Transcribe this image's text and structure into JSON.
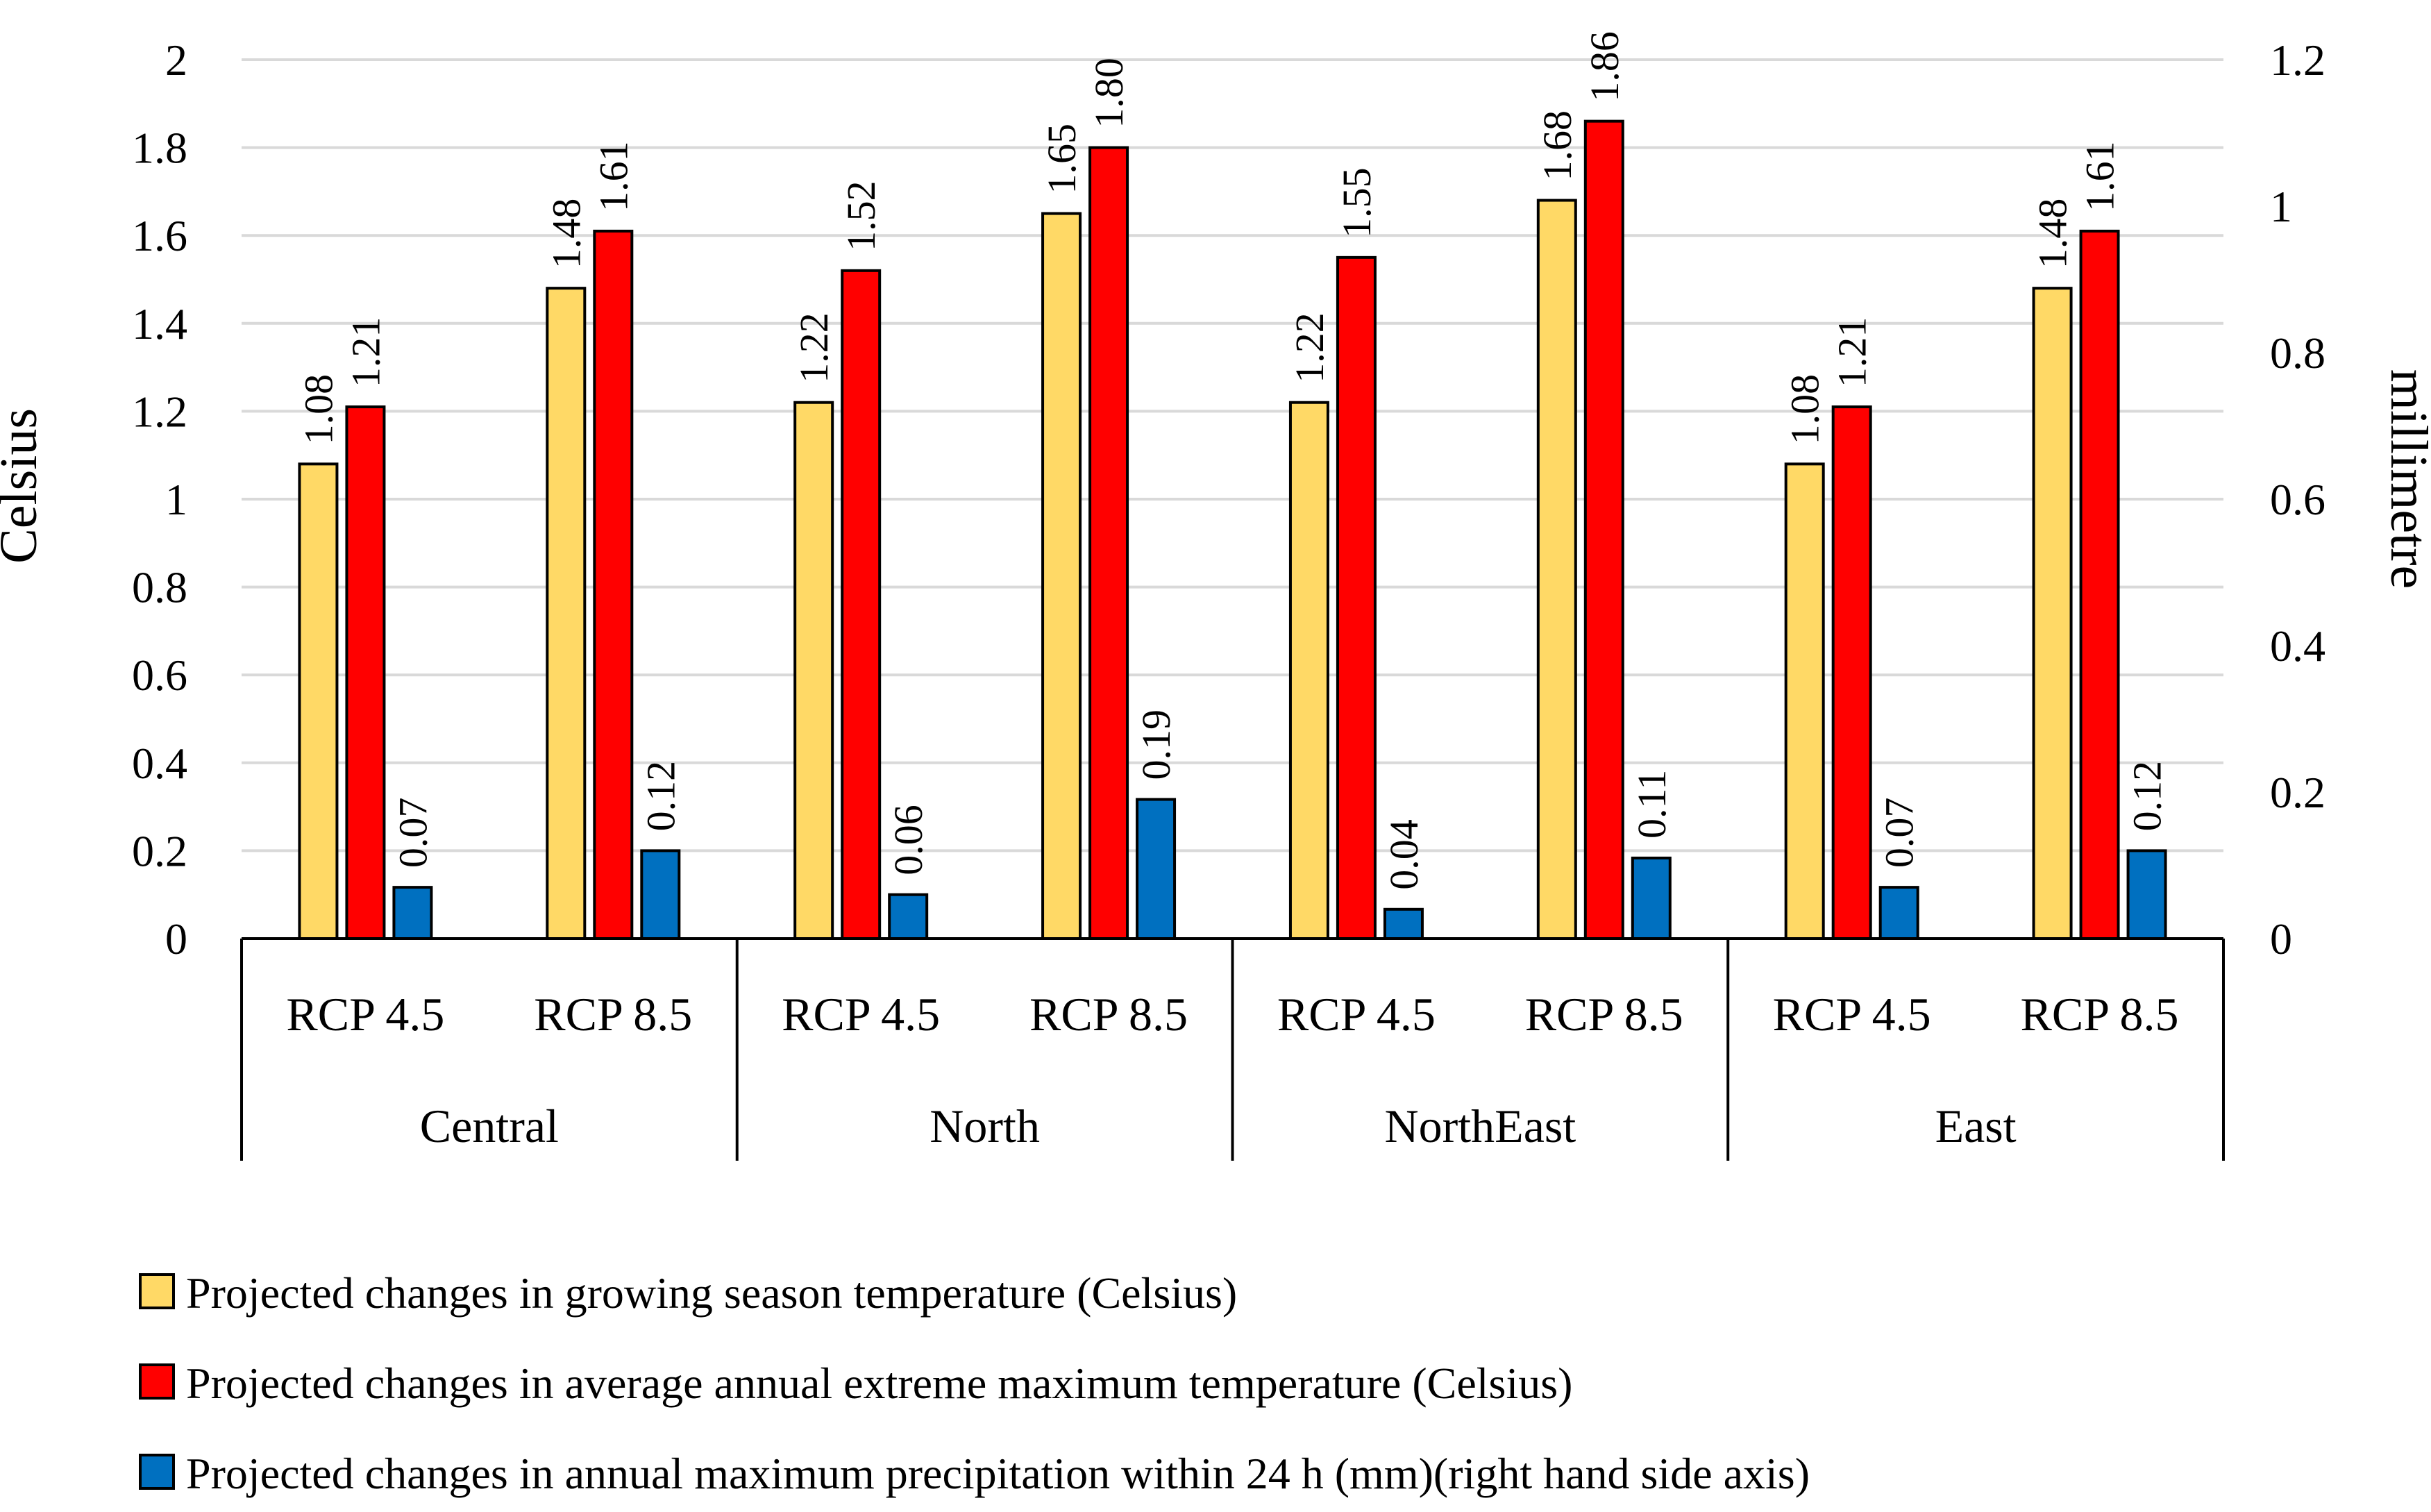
{
  "chart_data": {
    "type": "bar",
    "groups": [
      {
        "label": "Central",
        "categories": [
          "RCP 4.5",
          "RCP 8.5"
        ]
      },
      {
        "label": "North",
        "categories": [
          "RCP 4.5",
          "RCP 8.5"
        ]
      },
      {
        "label": "NorthEast",
        "categories": [
          "RCP 4.5",
          "RCP 8.5"
        ]
      },
      {
        "label": "East",
        "categories": [
          "RCP 4.5",
          "RCP 8.5"
        ]
      }
    ],
    "series": [
      {
        "name": "Projected changes in growing season temperature (Celsius)",
        "axis": "left",
        "color": "#FFD966",
        "values": [
          1.08,
          1.48,
          1.22,
          1.65,
          1.22,
          1.68,
          1.08,
          1.48
        ],
        "labels": [
          "1.08",
          "1.48",
          "1.22",
          "1.65",
          "1.22",
          "1.68",
          "1.08",
          "1.48"
        ]
      },
      {
        "name": "Projected changes in average annual extreme maximum temperature (Celsius)",
        "axis": "left",
        "color": "#FF0000",
        "values": [
          1.21,
          1.61,
          1.52,
          1.8,
          1.55,
          1.86,
          1.21,
          1.61
        ],
        "labels": [
          "1.21",
          "1.61",
          "1.52",
          "1.80",
          "1.55",
          "1.86",
          "1.21",
          "1.61"
        ]
      },
      {
        "name": "Projected changes in annual maximum precipitation within 24 h (mm)(right hand side axis)",
        "axis": "right",
        "color": "#0070C0",
        "values": [
          0.07,
          0.12,
          0.06,
          0.19,
          0.04,
          0.11,
          0.07,
          0.12
        ],
        "labels": [
          "0.07",
          "0.12",
          "0.06",
          "0.19",
          "0.04",
          "0.11",
          "0.07",
          "0.12"
        ]
      }
    ],
    "y_left": {
      "title": "Celsius",
      "ylim": [
        0,
        2
      ],
      "ticks": [
        0,
        0.2,
        0.4,
        0.6,
        0.8,
        1,
        1.2,
        1.4,
        1.6,
        1.8,
        2
      ],
      "tick_labels": [
        "0",
        "0.2",
        "0.4",
        "0.6",
        "0.8",
        "1",
        "1.2",
        "1.4",
        "1.6",
        "1.8",
        "2"
      ]
    },
    "y_right": {
      "title": "millimetre",
      "ylim": [
        0,
        1.2
      ],
      "ticks": [
        0,
        0.2,
        0.4,
        0.6,
        0.8,
        1,
        1.2
      ],
      "tick_labels": [
        "0",
        "0.2",
        "0.4",
        "0.6",
        "0.8",
        "1",
        "1.2"
      ]
    },
    "grid": true,
    "legend_position": "bottom-left"
  }
}
